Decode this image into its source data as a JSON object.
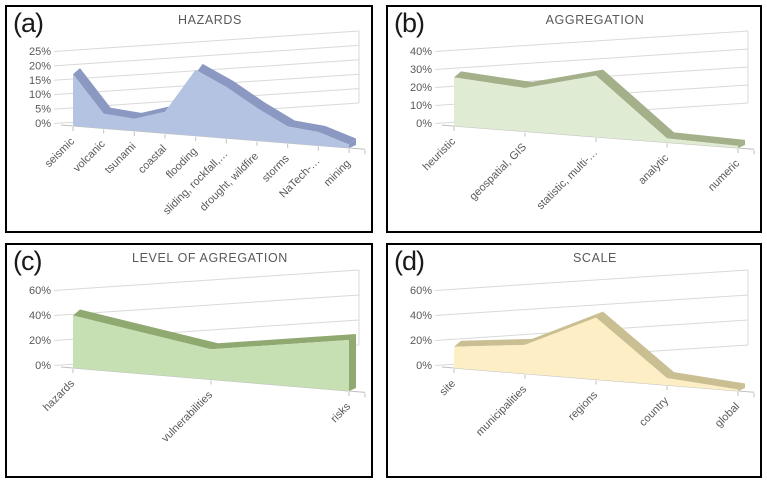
{
  "figure_caption": "four 3D area charts",
  "colors": {
    "grid": "#d9d9d9",
    "axis_line": "#bfbfbf",
    "text": "#595959",
    "panel_border": "#000000",
    "background": "#ffffff"
  },
  "chart_data": [
    {
      "id": "a",
      "panel_label": "(a)",
      "title": "HAZARDS",
      "type": "area",
      "legend": "none",
      "grid": "on",
      "categories": [
        "seismic",
        "volcanic",
        "tsunami",
        "coastal",
        "flooding",
        "sliding, rockfall,…",
        "drought, wildfire",
        "storms",
        "NaTech-…",
        "mining"
      ],
      "values": [
        18,
        5,
        4,
        7,
        21,
        16,
        10,
        5,
        4,
        1
      ],
      "ylim": [
        0,
        25
      ],
      "ytick_step": 5,
      "yticks": [
        "0%",
        "5%",
        "10%",
        "15%",
        "20%",
        "25%"
      ],
      "fill_color": "#b4c3e1",
      "edge_color": "#8b99c2"
    },
    {
      "id": "b",
      "panel_label": "(b)",
      "title": "AGGREGATION",
      "type": "area",
      "legend": "none",
      "grid": "on",
      "categories": [
        "heuristic",
        "geospatial, GIS",
        "statistic, multi-…",
        "analytic",
        "numeric"
      ],
      "values": [
        27,
        23,
        31,
        2,
        1
      ],
      "ylim": [
        0,
        40
      ],
      "ytick_step": 10,
      "yticks": [
        "0%",
        "10%",
        "20%",
        "30%",
        "40%"
      ],
      "fill_color": "#dfebd2",
      "edge_color": "#a3b089"
    },
    {
      "id": "c",
      "panel_label": "(c)",
      "title": "LEVEL OF AGREGATION",
      "type": "area",
      "legend": "none",
      "grid": "on",
      "categories": [
        "hazards",
        "vulnerabilities",
        "risks"
      ],
      "values": [
        42,
        22,
        34
      ],
      "ylim": [
        0,
        60
      ],
      "ytick_step": 20,
      "yticks": [
        "0%",
        "20%",
        "40%",
        "60%"
      ],
      "fill_color": "#c6e0b4",
      "edge_color": "#90a971"
    },
    {
      "id": "d",
      "panel_label": "(d)",
      "title": "SCALE",
      "type": "area",
      "legend": "none",
      "grid": "on",
      "categories": [
        "site",
        "municipalities",
        "regions",
        "country",
        "global"
      ],
      "values": [
        17,
        22,
        45,
        5,
        1
      ],
      "ylim": [
        0,
        60
      ],
      "ytick_step": 20,
      "yticks": [
        "0%",
        "20%",
        "40%",
        "60%"
      ],
      "fill_color": "#fdeec6",
      "edge_color": "#cabf92"
    }
  ]
}
